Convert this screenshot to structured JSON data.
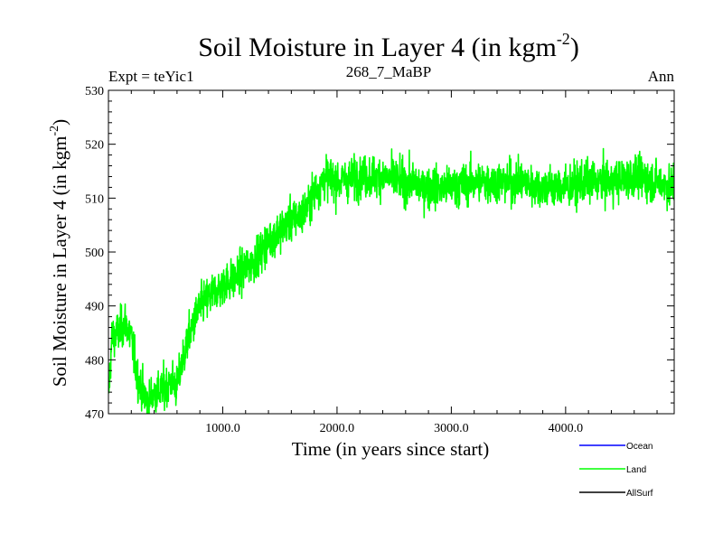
{
  "chart_data": {
    "type": "line",
    "title": "Soil Moisture in Layer 4 (in kgm",
    "title_sup": "-2",
    "title_close": ")",
    "subtitle_left": "Expt = teYic1",
    "subtitle_center": "268_7_MaBP",
    "subtitle_right": "Ann",
    "xlabel": "Time (in years since start)",
    "ylabel": "Soil Moisture in Layer 4 (in kgm",
    "ylabel_sup": "-2",
    "ylabel_close": ")",
    "xlim": [
      0,
      4950
    ],
    "ylim": [
      470,
      530
    ],
    "x_ticks": [
      1000,
      2000,
      3000,
      4000
    ],
    "x_tick_labels": [
      "1000.0",
      "2000.0",
      "3000.0",
      "4000.0"
    ],
    "y_ticks": [
      470,
      480,
      490,
      500,
      510,
      520,
      530
    ],
    "y_tick_labels": [
      "470",
      "480",
      "490",
      "500",
      "510",
      "520",
      "530"
    ],
    "legend": [
      {
        "name": "Ocean",
        "color": "#0000ff"
      },
      {
        "name": "Land",
        "color": "#00ff00"
      },
      {
        "name": "AllSurf",
        "color": "#000000"
      }
    ],
    "series": [
      {
        "name": "Land",
        "color": "#00ff00",
        "noise_amplitude": 3.5,
        "x": [
          0,
          30,
          80,
          150,
          200,
          250,
          300,
          350,
          400,
          450,
          500,
          550,
          600,
          650,
          700,
          800,
          900,
          1000,
          1100,
          1200,
          1300,
          1400,
          1500,
          1600,
          1700,
          1800,
          1900,
          2000,
          2200,
          2400,
          2600,
          2800,
          3000,
          3200,
          3400,
          3600,
          3800,
          4000,
          4200,
          4400,
          4600,
          4800,
          4950
        ],
        "y": [
          473,
          484,
          485,
          487,
          484,
          477,
          474,
          472,
          474,
          474,
          475,
          476,
          475,
          480,
          484,
          490,
          492,
          494,
          495,
          497,
          499,
          502,
          504,
          506,
          507,
          511,
          514,
          513,
          514,
          514,
          513,
          512,
          512,
          513,
          513,
          513,
          512,
          512,
          513,
          513,
          514,
          513,
          512
        ]
      }
    ]
  }
}
